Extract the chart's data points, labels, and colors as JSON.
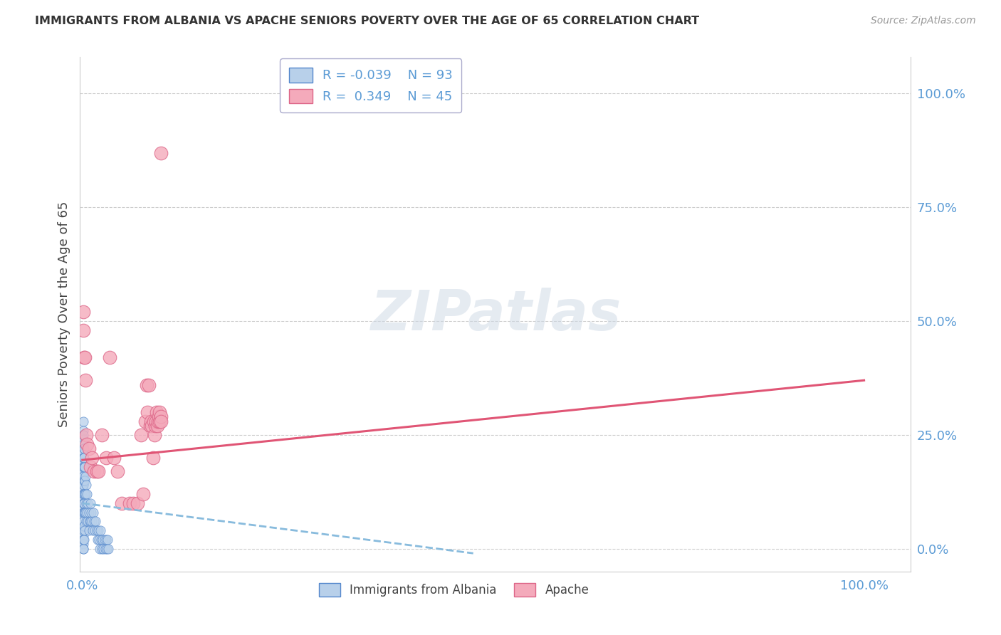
{
  "title": "IMMIGRANTS FROM ALBANIA VS APACHE SENIORS POVERTY OVER THE AGE OF 65 CORRELATION CHART",
  "source": "Source: ZipAtlas.com",
  "ylabel_label": "Seniors Poverty Over the Age of 65",
  "legend_label1": "Immigrants from Albania",
  "legend_label2": "Apache",
  "R1": -0.039,
  "N1": 93,
  "R2": 0.349,
  "N2": 45,
  "color_blue_face": "#b8d0ea",
  "color_blue_edge": "#5588cc",
  "color_pink_face": "#f4aabb",
  "color_pink_edge": "#dd6688",
  "color_blue_line": "#88bbdd",
  "color_pink_line": "#e05575",
  "watermark_color": "#cdd8e5",
  "title_color": "#333333",
  "source_color": "#999999",
  "tick_color": "#5b9bd5",
  "blue_x": [
    0.001,
    0.001,
    0.001,
    0.001,
    0.001,
    0.001,
    0.001,
    0.001,
    0.001,
    0.001,
    0.001,
    0.001,
    0.001,
    0.001,
    0.001,
    0.001,
    0.001,
    0.001,
    0.001,
    0.001,
    0.001,
    0.001,
    0.001,
    0.001,
    0.001,
    0.001,
    0.001,
    0.001,
    0.001,
    0.001,
    0.001,
    0.001,
    0.001,
    0.001,
    0.001,
    0.001,
    0.001,
    0.001,
    0.001,
    0.001,
    0.001,
    0.002,
    0.002,
    0.002,
    0.002,
    0.002,
    0.002,
    0.002,
    0.002,
    0.002,
    0.003,
    0.003,
    0.003,
    0.003,
    0.003,
    0.004,
    0.004,
    0.004,
    0.005,
    0.005,
    0.005,
    0.006,
    0.006,
    0.007,
    0.007,
    0.008,
    0.008,
    0.009,
    0.01,
    0.01,
    0.011,
    0.012,
    0.013,
    0.014,
    0.015,
    0.016,
    0.017,
    0.018,
    0.019,
    0.02,
    0.021,
    0.022,
    0.023,
    0.024,
    0.025,
    0.026,
    0.027,
    0.028,
    0.029,
    0.03,
    0.031,
    0.032,
    0.033
  ],
  "blue_y": [
    0.28,
    0.26,
    0.24,
    0.23,
    0.22,
    0.21,
    0.2,
    0.19,
    0.18,
    0.17,
    0.16,
    0.15,
    0.14,
    0.13,
    0.12,
    0.11,
    0.1,
    0.09,
    0.08,
    0.07,
    0.06,
    0.05,
    0.04,
    0.03,
    0.02,
    0.01,
    0.0,
    0.05,
    0.1,
    0.15,
    0.2,
    0.25,
    0.18,
    0.16,
    0.14,
    0.12,
    0.08,
    0.06,
    0.04,
    0.02,
    0.0,
    0.22,
    0.2,
    0.18,
    0.15,
    0.12,
    0.1,
    0.08,
    0.05,
    0.02,
    0.18,
    0.15,
    0.12,
    0.08,
    0.04,
    0.16,
    0.12,
    0.08,
    0.14,
    0.1,
    0.06,
    0.12,
    0.08,
    0.1,
    0.06,
    0.08,
    0.04,
    0.06,
    0.1,
    0.06,
    0.08,
    0.06,
    0.04,
    0.08,
    0.06,
    0.04,
    0.06,
    0.04,
    0.02,
    0.04,
    0.02,
    0.0,
    0.04,
    0.02,
    0.0,
    0.02,
    0.0,
    0.02,
    0.0,
    0.02,
    0.0,
    0.02,
    0.0
  ],
  "pink_x": [
    0.001,
    0.001,
    0.002,
    0.003,
    0.004,
    0.005,
    0.006,
    0.008,
    0.01,
    0.012,
    0.015,
    0.018,
    0.02,
    0.025,
    0.03,
    0.035,
    0.04,
    0.045,
    0.05,
    0.06,
    0.065,
    0.07,
    0.075,
    0.078,
    0.08,
    0.082,
    0.083,
    0.085,
    0.087,
    0.088,
    0.089,
    0.09,
    0.091,
    0.092,
    0.093,
    0.094,
    0.095,
    0.096,
    0.097,
    0.098,
    0.099,
    0.099,
    0.1,
    0.1,
    0.1
  ],
  "pink_y": [
    0.52,
    0.48,
    0.42,
    0.42,
    0.37,
    0.25,
    0.23,
    0.22,
    0.18,
    0.2,
    0.17,
    0.17,
    0.17,
    0.25,
    0.2,
    0.42,
    0.2,
    0.17,
    0.1,
    0.1,
    0.1,
    0.1,
    0.25,
    0.12,
    0.28,
    0.36,
    0.3,
    0.36,
    0.27,
    0.28,
    0.27,
    0.2,
    0.28,
    0.25,
    0.27,
    0.28,
    0.3,
    0.27,
    0.28,
    0.29,
    0.28,
    0.3,
    0.29,
    0.28,
    0.87
  ],
  "blue_line_x": [
    0.0,
    0.5
  ],
  "blue_line_y": [
    0.1,
    -0.01
  ],
  "pink_line_x": [
    0.0,
    1.0
  ],
  "pink_line_y": [
    0.195,
    0.37
  ],
  "yticks": [
    0.0,
    0.25,
    0.5,
    0.75,
    1.0
  ],
  "ytick_labels": [
    "0.0%",
    "25.0%",
    "50.0%",
    "75.0%",
    "100.0%"
  ],
  "xtick_labels": [
    "0.0%",
    "100.0%"
  ],
  "xlim": [
    -0.003,
    1.06
  ],
  "ylim": [
    -0.05,
    1.08
  ]
}
